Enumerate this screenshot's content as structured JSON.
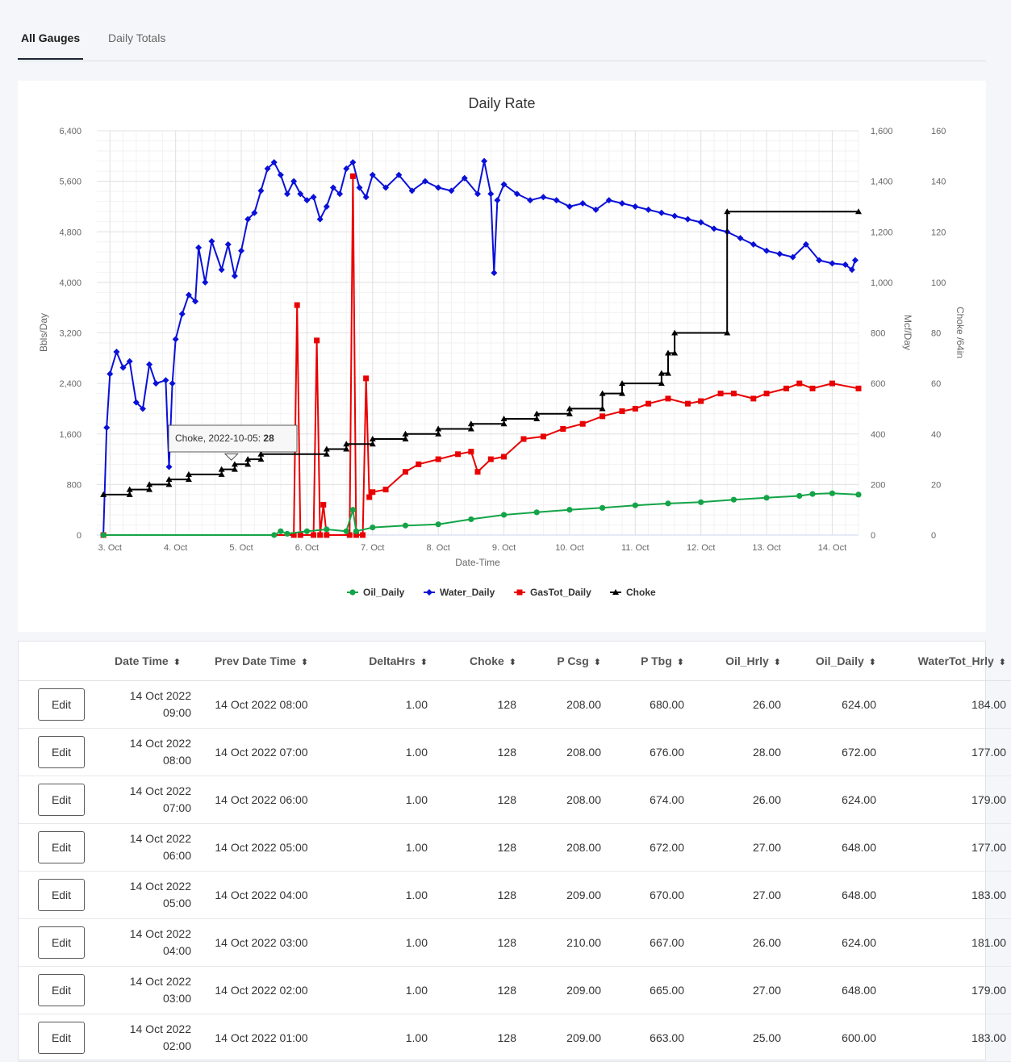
{
  "tabs": [
    {
      "label": "All Gauges",
      "active": true
    },
    {
      "label": "Daily Totals",
      "active": false
    }
  ],
  "chart_data": {
    "type": "line",
    "title": "Daily Rate",
    "xlabel": "Date-Time",
    "ylabel_left": "Bbls/Day",
    "ylabel_mid": "Mcf/Day",
    "ylabel_right": "Choke /64in",
    "x_tick_labels": [
      "3. Oct",
      "4. Oct",
      "5. Oct",
      "6. Oct",
      "7. Oct",
      "8. Oct",
      "9. Oct",
      "10. Oct",
      "11. Oct",
      "12. Oct",
      "13. Oct",
      "14. Oct"
    ],
    "xlim_days": [
      2.8,
      14.4
    ],
    "y_left": {
      "range": [
        0,
        6400
      ],
      "ticks": [
        "0",
        "800",
        "1,600",
        "2,400",
        "3,200",
        "4,000",
        "4,800",
        "5,600",
        "6,400"
      ]
    },
    "y_mid": {
      "range": [
        0,
        1600
      ],
      "ticks": [
        "0",
        "200",
        "400",
        "600",
        "800",
        "1,000",
        "1,200",
        "1,400",
        "1,600"
      ]
    },
    "y_right": {
      "range": [
        0,
        160
      ],
      "ticks": [
        "0",
        "20",
        "40",
        "60",
        "80",
        "100",
        "120",
        "140",
        "160"
      ]
    },
    "grid": true,
    "legend_position": "bottom-center",
    "tooltip": {
      "label": "Choke, 2022-10-05: ",
      "value": "28",
      "x_day": 4.85,
      "y_value": 28
    },
    "series": [
      {
        "name": "Oil_Daily",
        "color": "#13a447",
        "marker": "circle",
        "axis": "left",
        "points": [
          [
            2.9,
            0
          ],
          [
            5.5,
            0
          ],
          [
            5.6,
            60
          ],
          [
            5.7,
            20
          ],
          [
            6.0,
            60
          ],
          [
            6.3,
            90
          ],
          [
            6.6,
            60
          ],
          [
            6.7,
            400
          ],
          [
            6.75,
            60
          ],
          [
            7.0,
            120
          ],
          [
            7.5,
            150
          ],
          [
            8.0,
            170
          ],
          [
            8.5,
            250
          ],
          [
            9.0,
            320
          ],
          [
            9.5,
            360
          ],
          [
            10.0,
            400
          ],
          [
            10.5,
            430
          ],
          [
            11.0,
            470
          ],
          [
            11.5,
            500
          ],
          [
            12.0,
            520
          ],
          [
            12.5,
            560
          ],
          [
            13.0,
            590
          ],
          [
            13.5,
            620
          ],
          [
            13.7,
            650
          ],
          [
            14.0,
            660
          ],
          [
            14.4,
            640
          ]
        ]
      },
      {
        "name": "Water_Daily",
        "color": "#0a10d8",
        "marker": "diamond",
        "axis": "left",
        "points": [
          [
            2.9,
            0
          ],
          [
            2.95,
            1700
          ],
          [
            3.0,
            2550
          ],
          [
            3.1,
            2900
          ],
          [
            3.2,
            2650
          ],
          [
            3.3,
            2750
          ],
          [
            3.4,
            2100
          ],
          [
            3.5,
            2000
          ],
          [
            3.6,
            2700
          ],
          [
            3.7,
            2400
          ],
          [
            3.85,
            2450
          ],
          [
            3.9,
            1080
          ],
          [
            3.95,
            2400
          ],
          [
            4.0,
            3100
          ],
          [
            4.1,
            3500
          ],
          [
            4.2,
            3800
          ],
          [
            4.3,
            3700
          ],
          [
            4.35,
            4550
          ],
          [
            4.45,
            4000
          ],
          [
            4.55,
            4650
          ],
          [
            4.7,
            4200
          ],
          [
            4.8,
            4600
          ],
          [
            4.9,
            4100
          ],
          [
            5.0,
            4500
          ],
          [
            5.1,
            5000
          ],
          [
            5.2,
            5100
          ],
          [
            5.3,
            5450
          ],
          [
            5.4,
            5800
          ],
          [
            5.5,
            5900
          ],
          [
            5.6,
            5700
          ],
          [
            5.7,
            5400
          ],
          [
            5.8,
            5600
          ],
          [
            5.9,
            5400
          ],
          [
            6.0,
            5300
          ],
          [
            6.1,
            5350
          ],
          [
            6.2,
            5000
          ],
          [
            6.3,
            5200
          ],
          [
            6.4,
            5500
          ],
          [
            6.5,
            5400
          ],
          [
            6.6,
            5800
          ],
          [
            6.7,
            5900
          ],
          [
            6.8,
            5500
          ],
          [
            6.9,
            5350
          ],
          [
            7.0,
            5700
          ],
          [
            7.2,
            5500
          ],
          [
            7.4,
            5700
          ],
          [
            7.6,
            5450
          ],
          [
            7.8,
            5600
          ],
          [
            8.0,
            5500
          ],
          [
            8.2,
            5450
          ],
          [
            8.4,
            5650
          ],
          [
            8.6,
            5400
          ],
          [
            8.7,
            5920
          ],
          [
            8.8,
            5400
          ],
          [
            8.85,
            4150
          ],
          [
            8.9,
            5300
          ],
          [
            9.0,
            5550
          ],
          [
            9.2,
            5400
          ],
          [
            9.4,
            5300
          ],
          [
            9.6,
            5350
          ],
          [
            9.8,
            5300
          ],
          [
            10.0,
            5200
          ],
          [
            10.2,
            5250
          ],
          [
            10.4,
            5150
          ],
          [
            10.6,
            5300
          ],
          [
            10.8,
            5250
          ],
          [
            11.0,
            5200
          ],
          [
            11.2,
            5150
          ],
          [
            11.4,
            5100
          ],
          [
            11.6,
            5050
          ],
          [
            11.8,
            5000
          ],
          [
            12.0,
            4950
          ],
          [
            12.2,
            4850
          ],
          [
            12.4,
            4800
          ],
          [
            12.6,
            4700
          ],
          [
            12.8,
            4600
          ],
          [
            13.0,
            4500
          ],
          [
            13.2,
            4450
          ],
          [
            13.4,
            4400
          ],
          [
            13.6,
            4600
          ],
          [
            13.8,
            4350
          ],
          [
            14.0,
            4300
          ],
          [
            14.2,
            4280
          ],
          [
            14.3,
            4200
          ],
          [
            14.35,
            4350
          ]
        ]
      },
      {
        "name": "GasTot_Daily",
        "color": "#e90000",
        "marker": "square",
        "axis": "mid",
        "points": [
          [
            2.9,
            0
          ],
          [
            5.8,
            0
          ],
          [
            5.85,
            910
          ],
          [
            5.9,
            0
          ],
          [
            6.1,
            0
          ],
          [
            6.15,
            770
          ],
          [
            6.2,
            0
          ],
          [
            6.25,
            120
          ],
          [
            6.3,
            0
          ],
          [
            6.65,
            0
          ],
          [
            6.7,
            1420
          ],
          [
            6.75,
            0
          ],
          [
            6.85,
            0
          ],
          [
            6.9,
            620
          ],
          [
            6.95,
            150
          ],
          [
            7.0,
            170
          ],
          [
            7.2,
            180
          ],
          [
            7.5,
            250
          ],
          [
            7.7,
            280
          ],
          [
            8.0,
            300
          ],
          [
            8.3,
            320
          ],
          [
            8.5,
            330
          ],
          [
            8.6,
            250
          ],
          [
            8.8,
            300
          ],
          [
            9.0,
            310
          ],
          [
            9.3,
            380
          ],
          [
            9.6,
            390
          ],
          [
            9.9,
            420
          ],
          [
            10.2,
            440
          ],
          [
            10.5,
            470
          ],
          [
            10.8,
            490
          ],
          [
            11.0,
            500
          ],
          [
            11.2,
            520
          ],
          [
            11.5,
            540
          ],
          [
            11.8,
            520
          ],
          [
            12.0,
            530
          ],
          [
            12.3,
            560
          ],
          [
            12.5,
            560
          ],
          [
            12.8,
            540
          ],
          [
            13.0,
            560
          ],
          [
            13.3,
            580
          ],
          [
            13.5,
            600
          ],
          [
            13.7,
            580
          ],
          [
            14.0,
            600
          ],
          [
            14.4,
            580
          ]
        ]
      },
      {
        "name": "Choke",
        "color": "#000000",
        "marker": "triangle",
        "axis": "right",
        "points": [
          [
            2.9,
            16
          ],
          [
            3.3,
            16
          ],
          [
            3.3,
            18
          ],
          [
            3.6,
            18
          ],
          [
            3.6,
            20
          ],
          [
            3.9,
            20
          ],
          [
            3.9,
            22
          ],
          [
            4.2,
            22
          ],
          [
            4.2,
            24
          ],
          [
            4.7,
            24
          ],
          [
            4.7,
            26
          ],
          [
            4.9,
            26
          ],
          [
            4.9,
            28
          ],
          [
            5.1,
            28
          ],
          [
            5.1,
            30
          ],
          [
            5.3,
            30
          ],
          [
            5.3,
            32
          ],
          [
            6.3,
            32
          ],
          [
            6.3,
            34
          ],
          [
            6.6,
            34
          ],
          [
            6.6,
            36
          ],
          [
            7.0,
            36
          ],
          [
            7.0,
            38
          ],
          [
            7.5,
            38
          ],
          [
            7.5,
            40
          ],
          [
            8.0,
            40
          ],
          [
            8.0,
            42
          ],
          [
            8.5,
            42
          ],
          [
            8.5,
            44
          ],
          [
            9.0,
            44
          ],
          [
            9.0,
            46
          ],
          [
            9.5,
            46
          ],
          [
            9.5,
            48
          ],
          [
            10.0,
            48
          ],
          [
            10.0,
            50
          ],
          [
            10.5,
            50
          ],
          [
            10.5,
            56
          ],
          [
            10.8,
            56
          ],
          [
            10.8,
            60
          ],
          [
            11.4,
            60
          ],
          [
            11.4,
            64
          ],
          [
            11.5,
            64
          ],
          [
            11.5,
            72
          ],
          [
            11.6,
            72
          ],
          [
            11.6,
            80
          ],
          [
            12.4,
            80
          ],
          [
            12.4,
            128
          ],
          [
            14.4,
            128
          ]
        ]
      }
    ]
  },
  "table": {
    "columns": [
      "",
      "Date Time",
      "Prev Date Time",
      "DeltaHrs",
      "Choke",
      "P Csg",
      "P Tbg",
      "Oil_Hrly",
      "Oil_Daily",
      "WaterTot_Hrly"
    ],
    "sort_icon": "⬍",
    "edit_label": "Edit",
    "rows": [
      {
        "date1": "14 Oct 2022",
        "date2": "09:00",
        "prev": "14 Oct 2022 08:00",
        "delta": "1.00",
        "choke": "128",
        "pcsg": "208.00",
        "ptbg": "680.00",
        "oilh": "26.00",
        "oild": "624.00",
        "wth": "184.00"
      },
      {
        "date1": "14 Oct 2022",
        "date2": "08:00",
        "prev": "14 Oct 2022 07:00",
        "delta": "1.00",
        "choke": "128",
        "pcsg": "208.00",
        "ptbg": "676.00",
        "oilh": "28.00",
        "oild": "672.00",
        "wth": "177.00"
      },
      {
        "date1": "14 Oct 2022",
        "date2": "07:00",
        "prev": "14 Oct 2022 06:00",
        "delta": "1.00",
        "choke": "128",
        "pcsg": "208.00",
        "ptbg": "674.00",
        "oilh": "26.00",
        "oild": "624.00",
        "wth": "179.00"
      },
      {
        "date1": "14 Oct 2022",
        "date2": "06:00",
        "prev": "14 Oct 2022 05:00",
        "delta": "1.00",
        "choke": "128",
        "pcsg": "208.00",
        "ptbg": "672.00",
        "oilh": "27.00",
        "oild": "648.00",
        "wth": "177.00"
      },
      {
        "date1": "14 Oct 2022",
        "date2": "05:00",
        "prev": "14 Oct 2022 04:00",
        "delta": "1.00",
        "choke": "128",
        "pcsg": "209.00",
        "ptbg": "670.00",
        "oilh": "27.00",
        "oild": "648.00",
        "wth": "183.00"
      },
      {
        "date1": "14 Oct 2022",
        "date2": "04:00",
        "prev": "14 Oct 2022 03:00",
        "delta": "1.00",
        "choke": "128",
        "pcsg": "210.00",
        "ptbg": "667.00",
        "oilh": "26.00",
        "oild": "624.00",
        "wth": "181.00"
      },
      {
        "date1": "14 Oct 2022",
        "date2": "03:00",
        "prev": "14 Oct 2022 02:00",
        "delta": "1.00",
        "choke": "128",
        "pcsg": "209.00",
        "ptbg": "665.00",
        "oilh": "27.00",
        "oild": "648.00",
        "wth": "179.00"
      },
      {
        "date1": "14 Oct 2022",
        "date2": "02:00",
        "prev": "14 Oct 2022 01:00",
        "delta": "1.00",
        "choke": "128",
        "pcsg": "209.00",
        "ptbg": "663.00",
        "oilh": "25.00",
        "oild": "600.00",
        "wth": "183.00"
      }
    ]
  }
}
